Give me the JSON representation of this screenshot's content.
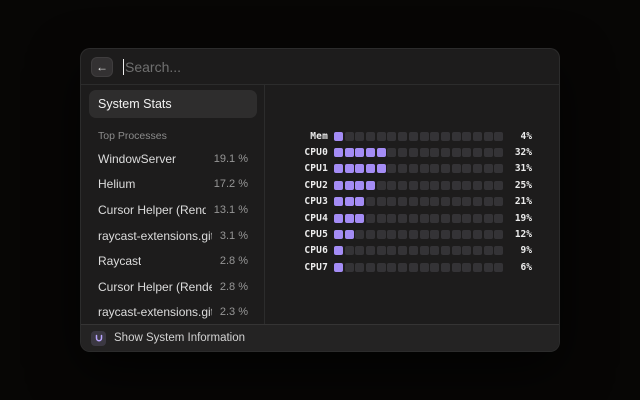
{
  "search": {
    "placeholder": "Search...",
    "back_glyph": "←"
  },
  "sidebar": {
    "selected_item": "System Stats",
    "section_header": "Top Processes",
    "processes": [
      {
        "name": "WindowServer",
        "cpu": "19.1 %"
      },
      {
        "name": "Helium",
        "cpu": "17.2 %"
      },
      {
        "name": "Cursor Helper (Renderer)",
        "cpu": "13.1 %"
      },
      {
        "name": "raycast-extensions.git",
        "cpu": "3.1 %"
      },
      {
        "name": "Raycast",
        "cpu": "2.8 %"
      },
      {
        "name": "Cursor Helper (Renderer)",
        "cpu": "2.8 %"
      },
      {
        "name": "raycast-extensions.git",
        "cpu": "2.3 %"
      }
    ]
  },
  "detail": {
    "meters": [
      {
        "label": "Mem",
        "percent": "4%",
        "filled": 1,
        "total": 16
      },
      {
        "label": "CPU0",
        "percent": "32%",
        "filled": 5,
        "total": 16
      },
      {
        "label": "CPU1",
        "percent": "31%",
        "filled": 5,
        "total": 16
      },
      {
        "label": "CPU2",
        "percent": "25%",
        "filled": 4,
        "total": 16
      },
      {
        "label": "CPU3",
        "percent": "21%",
        "filled": 3,
        "total": 16
      },
      {
        "label": "CPU4",
        "percent": "19%",
        "filled": 3,
        "total": 16
      },
      {
        "label": "CPU5",
        "percent": "12%",
        "filled": 2,
        "total": 16
      },
      {
        "label": "CPU6",
        "percent": "9%",
        "filled": 1,
        "total": 16
      },
      {
        "label": "CPU7",
        "percent": "6%",
        "filled": 1,
        "total": 16
      }
    ]
  },
  "footer": {
    "action_label": "Show System Information"
  },
  "colors": {
    "accent": "#a48cf5",
    "block_empty": "#343336"
  }
}
